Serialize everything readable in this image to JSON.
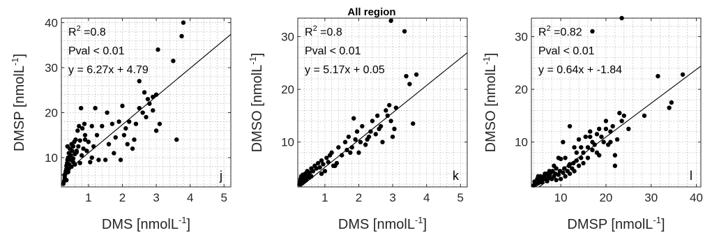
{
  "figure_title": "All region",
  "chart_data": [
    {
      "type": "scatter",
      "panel": "j",
      "xlabel": "DMS [nmolL",
      "xlabel_sup": "-1",
      "xlabel_tail": "]",
      "ylabel": "DMSP [nmolL",
      "ylabel_sup": "-1",
      "ylabel_tail": "]",
      "xlim": [
        0.2,
        5.2
      ],
      "ylim": [
        3.5,
        41
      ],
      "xticks": [
        1,
        2,
        3,
        4,
        5
      ],
      "yticks": [
        10,
        20,
        30,
        40
      ],
      "grid": true,
      "annotations": [
        "R",
        "2",
        " =0.8",
        "Pval < 0.01",
        "y = 6.27x + 4.79"
      ],
      "fit": {
        "slope": 6.27,
        "intercept": 4.79
      },
      "x": [
        0.26,
        0.28,
        0.3,
        0.3,
        0.32,
        0.33,
        0.35,
        0.35,
        0.37,
        0.38,
        0.4,
        0.4,
        0.42,
        0.43,
        0.45,
        0.47,
        0.48,
        0.5,
        0.5,
        0.52,
        0.55,
        0.55,
        0.58,
        0.6,
        0.62,
        0.65,
        0.68,
        0.7,
        0.72,
        0.75,
        0.78,
        0.8,
        0.82,
        0.85,
        0.88,
        0.9,
        0.95,
        1.0,
        1.05,
        1.1,
        1.15,
        1.2,
        1.25,
        1.3,
        1.4,
        1.5,
        1.55,
        1.6,
        1.7,
        1.75,
        1.8,
        1.9,
        1.95,
        2.0,
        2.05,
        2.1,
        2.15,
        2.2,
        2.3,
        2.35,
        2.4,
        2.5,
        2.6,
        2.65,
        2.7,
        2.75,
        2.8,
        2.9,
        3.0,
        3.05,
        3.1,
        3.5,
        3.6,
        3.75,
        3.8,
        0.35,
        0.42,
        0.6,
        0.65,
        0.9,
        1.1,
        2.5,
        2.9,
        3.0,
        0.38,
        0.55,
        0.75
      ],
      "y": [
        4.2,
        4.8,
        5.5,
        6.0,
        6.5,
        7.0,
        7.5,
        8.2,
        8.8,
        9.5,
        10.0,
        6.8,
        11.0,
        8.5,
        12.0,
        9.5,
        10.5,
        13.0,
        8.0,
        11.5,
        12.5,
        9.0,
        13.5,
        10.8,
        14.0,
        11.2,
        16.0,
        12.5,
        17.0,
        13.8,
        21.0,
        10.5,
        16.5,
        12.0,
        17.5,
        15.0,
        11.5,
        13.5,
        9.0,
        10.0,
        12.5,
        21.0,
        15.0,
        9.5,
        17.0,
        9.5,
        20.0,
        13.0,
        17.5,
        11.0,
        14.5,
        18.0,
        9.5,
        21.5,
        15.0,
        16.5,
        13.0,
        18.0,
        12.0,
        14.0,
        17.5,
        21.0,
        20.0,
        24.5,
        19.0,
        23.0,
        22.0,
        20.5,
        24.0,
        34.0,
        17.5,
        31.5,
        14.0,
        37.0,
        40.0,
        5.0,
        7.5,
        8.5,
        11.5,
        14.0,
        17.0,
        27.0,
        23.5,
        16.0,
        12.5,
        9.8,
        8.8
      ]
    },
    {
      "type": "scatter",
      "panel": "k",
      "xlabel": "DMS [nmolL",
      "xlabel_sup": "-1",
      "xlabel_tail": "]",
      "ylabel": "DMSO [nmolL",
      "ylabel_sup": "-1",
      "ylabel_tail": "]",
      "xlim": [
        0.2,
        5.2
      ],
      "ylim": [
        1.5,
        33.5
      ],
      "xticks": [
        1,
        2,
        3,
        4,
        5
      ],
      "yticks": [
        10,
        20,
        30
      ],
      "grid": true,
      "annotations": [
        "R",
        "2",
        " =0.8",
        "Pval < 0.01",
        "y = 5.17x + 0.05"
      ],
      "fit": {
        "slope": 5.17,
        "intercept": 0.05
      },
      "x": [
        0.25,
        0.27,
        0.28,
        0.3,
        0.3,
        0.32,
        0.33,
        0.35,
        0.35,
        0.37,
        0.38,
        0.4,
        0.42,
        0.45,
        0.48,
        0.5,
        0.55,
        0.6,
        0.65,
        0.7,
        0.75,
        0.8,
        0.85,
        0.9,
        0.95,
        1.0,
        1.05,
        1.1,
        1.15,
        1.2,
        1.3,
        1.35,
        1.4,
        1.5,
        1.6,
        1.65,
        1.7,
        1.8,
        1.85,
        1.9,
        1.95,
        2.0,
        2.05,
        2.1,
        2.2,
        2.3,
        2.35,
        2.4,
        2.5,
        2.55,
        2.6,
        2.65,
        2.7,
        2.8,
        2.85,
        2.9,
        2.95,
        3.0,
        3.05,
        3.1,
        3.4,
        3.5,
        3.6,
        3.7,
        2.95,
        3.35,
        0.45,
        0.6,
        0.9,
        1.25,
        1.75,
        2.25,
        0.33,
        0.4,
        0.55
      ],
      "y": [
        2.0,
        2.5,
        3.0,
        2.2,
        3.5,
        2.8,
        3.2,
        2.5,
        3.8,
        3.0,
        2.6,
        3.5,
        4.0,
        3.2,
        4.5,
        3.8,
        4.2,
        5.0,
        4.5,
        5.5,
        5.0,
        6.0,
        5.2,
        6.5,
        5.8,
        4.5,
        7.0,
        6.2,
        7.5,
        8.0,
        5.5,
        6.0,
        9.0,
        7.5,
        10.0,
        8.5,
        11.0,
        9.0,
        14.5,
        10.5,
        12.0,
        8.0,
        10.0,
        13.0,
        9.5,
        11.0,
        12.0,
        14.0,
        11.5,
        15.0,
        12.5,
        13.0,
        10.0,
        16.0,
        15.0,
        17.0,
        14.0,
        11.0,
        12.5,
        16.5,
        22.5,
        21.0,
        13.5,
        22.8,
        33.0,
        31.0,
        2.8,
        3.5,
        4.0,
        5.5,
        8.0,
        10.5,
        2.3,
        3.0,
        3.3
      ]
    },
    {
      "type": "scatter",
      "panel": "l",
      "xlabel": "DMSP [nmolL",
      "xlabel_sup": "-1",
      "xlabel_tail": "]",
      "ylabel": "DMSO [nmolL",
      "ylabel_sup": "-1",
      "ylabel_tail": "]",
      "xlim": [
        3.5,
        41
      ],
      "ylim": [
        1.5,
        33.5
      ],
      "xticks": [
        10,
        20,
        30,
        40
      ],
      "yticks": [
        10,
        20,
        30
      ],
      "grid": true,
      "annotations": [
        "R",
        "2",
        " =0.82",
        "Pval < 0.01",
        "y = 0.64x + -1.84"
      ],
      "fit": {
        "slope": 0.64,
        "intercept": -1.84
      },
      "x": [
        4.0,
        4.2,
        4.5,
        4.8,
        5.0,
        5.0,
        5.2,
        5.5,
        5.8,
        6.0,
        6.0,
        6.3,
        6.5,
        6.8,
        7.0,
        7.0,
        7.3,
        7.5,
        7.8,
        8.0,
        8.2,
        8.5,
        8.8,
        9.0,
        9.0,
        9.5,
        9.8,
        10.0,
        10.0,
        10.5,
        10.8,
        11.0,
        11.0,
        11.5,
        11.8,
        12.0,
        12.0,
        12.5,
        12.8,
        13.0,
        13.0,
        13.5,
        14.0,
        14.0,
        14.5,
        15.0,
        15.0,
        15.5,
        16.0,
        16.0,
        16.5,
        17.0,
        17.0,
        17.5,
        18.0,
        18.0,
        18.5,
        19.0,
        19.5,
        20.0,
        20.5,
        21.0,
        21.5,
        22.0,
        22.5,
        23.0,
        23.5,
        24.0,
        25.0,
        28.5,
        31.5,
        34.0,
        34.5,
        37.0,
        17.0,
        23.5,
        13.5,
        9.5,
        10.5,
        12.0,
        14.5,
        16.5,
        18.5,
        20.0,
        21.0,
        22.0,
        5.5,
        6.5,
        7.5,
        8.5
      ],
      "y": [
        1.8,
        2.5,
        2.0,
        3.0,
        2.2,
        3.5,
        2.6,
        3.0,
        2.4,
        3.2,
        2.8,
        3.5,
        3.0,
        3.8,
        2.6,
        4.0,
        3.2,
        3.6,
        4.2,
        3.0,
        4.5,
        3.5,
        4.0,
        2.8,
        5.0,
        3.8,
        4.5,
        3.0,
        6.8,
        4.2,
        5.0,
        3.5,
        7.0,
        4.5,
        5.5,
        4.0,
        13.0,
        5.0,
        6.0,
        9.0,
        4.5,
        6.5,
        5.5,
        10.5,
        7.0,
        8.0,
        6.0,
        11.0,
        9.0,
        7.0,
        12.0,
        8.5,
        10.0,
        9.5,
        11.5,
        8.0,
        12.5,
        11.0,
        10.0,
        14.0,
        9.5,
        12.0,
        13.0,
        5.5,
        10.5,
        15.5,
        14.0,
        15.0,
        12.5,
        15.0,
        22.5,
        16.5,
        17.5,
        22.8,
        31.0,
        33.5,
        8.0,
        7.0,
        10.0,
        5.8,
        9.0,
        11.0,
        7.5,
        12.5,
        10.0,
        7.5,
        3.5,
        4.0,
        4.5,
        5.5
      ]
    }
  ]
}
